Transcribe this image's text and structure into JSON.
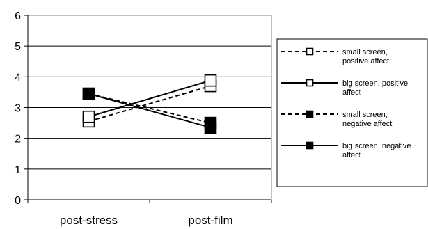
{
  "chart_data": {
    "type": "line",
    "categories": [
      "post-stress",
      "post-film"
    ],
    "ylim": [
      0,
      6
    ],
    "yticks": [
      0,
      1,
      2,
      3,
      4,
      5,
      6
    ],
    "grid": true,
    "legend_position": "right",
    "series": [
      {
        "name": "small screen, positive affect",
        "legend_lines": [
          "small screen,",
          "positive affect"
        ],
        "values": [
          2.55,
          3.7
        ],
        "line": "dashed",
        "marker": "open-square"
      },
      {
        "name": "big screen, positive affect",
        "legend_lines": [
          "big screen, positive",
          "affect"
        ],
        "values": [
          2.7,
          3.88
        ],
        "line": "solid",
        "marker": "open-square"
      },
      {
        "name": "small screen, negative affect",
        "legend_lines": [
          "small screen,",
          "negative affect"
        ],
        "values": [
          3.45,
          2.5
        ],
        "line": "dashed",
        "marker": "filled-square"
      },
      {
        "name": "big screen, negative affect",
        "legend_lines": [
          "big screen, negative",
          "affect"
        ],
        "values": [
          3.45,
          2.35
        ],
        "line": "solid",
        "marker": "filled-square"
      }
    ]
  }
}
